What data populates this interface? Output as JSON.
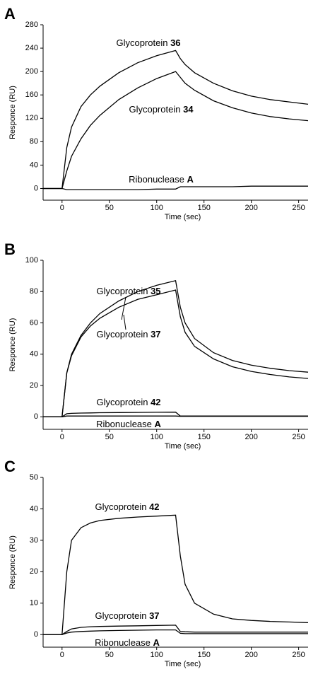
{
  "chart_data": [
    {
      "type": "line",
      "panel": "A",
      "xlabel": "Time (sec)",
      "ylabel": "Responce (RU)",
      "x": [
        -20,
        0,
        5,
        10,
        20,
        30,
        40,
        60,
        80,
        100,
        120,
        125,
        130,
        140,
        160,
        180,
        200,
        220,
        240,
        260
      ],
      "xlim": [
        -20,
        260
      ],
      "xticks": [
        0,
        50,
        100,
        150,
        200,
        250
      ],
      "ylim": [
        -20,
        280
      ],
      "yticks": [
        0,
        40,
        80,
        120,
        160,
        200,
        240,
        280
      ],
      "series": [
        {
          "name": "Glycoprotein 36",
          "color": "#000000",
          "values": [
            0,
            0,
            70,
            105,
            140,
            160,
            175,
            198,
            215,
            227,
            236,
            222,
            212,
            198,
            180,
            167,
            158,
            152,
            148,
            144
          ]
        },
        {
          "name": "Glycoprotein 34",
          "color": "#000000",
          "values": [
            0,
            0,
            30,
            55,
            85,
            108,
            125,
            152,
            172,
            188,
            200,
            190,
            180,
            168,
            150,
            138,
            129,
            123,
            119,
            116
          ]
        },
        {
          "name": "Ribonuclease A",
          "color": "#000000",
          "values": [
            0,
            0,
            -2,
            -2,
            -2,
            -2,
            -2,
            -2,
            -2,
            -1,
            -1,
            3,
            3,
            3,
            3,
            3,
            4,
            4,
            4,
            4
          ]
        }
      ]
    },
    {
      "type": "line",
      "panel": "B",
      "xlabel": "Time (sec)",
      "ylabel": "Responce (RU)",
      "x": [
        -20,
        0,
        5,
        10,
        20,
        30,
        40,
        60,
        80,
        100,
        120,
        125,
        130,
        140,
        160,
        180,
        200,
        220,
        240,
        260
      ],
      "xlim": [
        -20,
        260
      ],
      "xticks": [
        0,
        50,
        100,
        150,
        200,
        250
      ],
      "ylim": [
        -8,
        100
      ],
      "yticks": [
        0,
        20,
        40,
        60,
        80,
        100
      ],
      "series": [
        {
          "name": "Glycoprotein 35",
          "color": "#000000",
          "values": [
            0,
            0,
            28,
            40,
            52,
            60,
            66,
            74,
            80,
            84,
            87,
            70,
            60,
            50,
            41,
            36,
            33,
            31,
            29.5,
            28.5
          ]
        },
        {
          "name": "Glycoprotein 37",
          "color": "#000000",
          "values": [
            0,
            0,
            28,
            39,
            51,
            58,
            63,
            70,
            75,
            78,
            81,
            64,
            54,
            45,
            37,
            32,
            29,
            27,
            25.5,
            24.5
          ]
        },
        {
          "name": "Glycoprotein 42",
          "color": "#000000",
          "values": [
            0,
            0,
            2,
            2.2,
            2.4,
            2.5,
            2.6,
            2.7,
            2.8,
            2.9,
            3,
            0.5,
            0.5,
            0.5,
            0.5,
            0.5,
            0.5,
            0.5,
            0.5,
            0.5
          ]
        },
        {
          "name": "Ribonuclease A",
          "color": "#000000",
          "values": [
            0,
            0,
            0.5,
            0.5,
            0.5,
            0.5,
            0.5,
            0.5,
            0.5,
            0.5,
            0.5,
            0.3,
            0.3,
            0.3,
            0.3,
            0.3,
            0.3,
            0.3,
            0.3,
            0.3
          ]
        }
      ]
    },
    {
      "type": "line",
      "panel": "C",
      "xlabel": "Time (sec)",
      "ylabel": "Responce (RU)",
      "x": [
        -20,
        0,
        5,
        10,
        20,
        30,
        40,
        60,
        80,
        100,
        120,
        125,
        130,
        140,
        160,
        180,
        200,
        220,
        240,
        260
      ],
      "xlim": [
        -20,
        260
      ],
      "xticks": [
        0,
        50,
        100,
        150,
        200,
        250
      ],
      "ylim": [
        -4,
        50
      ],
      "yticks": [
        0,
        10,
        20,
        30,
        40,
        50
      ],
      "series": [
        {
          "name": "Glycoprotein 42",
          "color": "#000000",
          "values": [
            0,
            0,
            20,
            30,
            34,
            35.5,
            36.3,
            37,
            37.4,
            37.7,
            38,
            25,
            16,
            10,
            6.5,
            5,
            4.5,
            4.2,
            4,
            3.8
          ]
        },
        {
          "name": "Glycoprotein 37",
          "color": "#000000",
          "values": [
            0,
            0,
            1,
            1.8,
            2.3,
            2.5,
            2.6,
            2.7,
            2.8,
            2.9,
            3,
            1,
            0.9,
            0.8,
            0.8,
            0.8,
            0.8,
            0.8,
            0.8,
            0.8
          ]
        },
        {
          "name": "Ribonuclease A",
          "color": "#000000",
          "values": [
            0,
            0,
            0.5,
            0.8,
            1,
            1.1,
            1.2,
            1.3,
            1.4,
            1.5,
            1.5,
            0.4,
            0.3,
            0.3,
            0.3,
            0.3,
            0.3,
            0.3,
            0.3,
            0.3
          ]
        }
      ]
    }
  ]
}
